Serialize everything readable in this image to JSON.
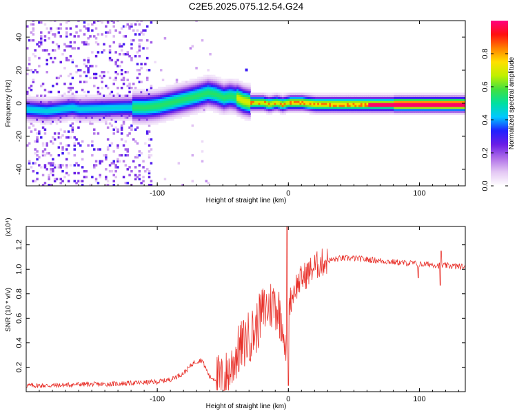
{
  "title": "C2E5.2025.075.12.54.G24",
  "chart_data": [
    {
      "type": "heatmap",
      "xlabel": "Height of straight line (km)",
      "ylabel": "Frequency (Hz)",
      "xlim": [
        -200,
        135
      ],
      "ylim": [
        -50,
        50
      ],
      "x_ticks": [
        -100,
        0,
        100
      ],
      "y_ticks": [
        -40,
        -20,
        0,
        20,
        40
      ],
      "ridge": {
        "x": [
          -200,
          -185,
          -175,
          -165,
          -160,
          -125,
          -110,
          -100,
          -90,
          -80,
          -70,
          -62,
          -56,
          -50,
          -45,
          -40,
          -35,
          -30,
          -25,
          -20,
          -15,
          -10,
          -5,
          0,
          10,
          20,
          40,
          60,
          80,
          100,
          120,
          135
        ],
        "y": [
          -4,
          -5,
          -4,
          -3,
          -4,
          -3,
          -3,
          -2,
          0,
          2,
          4,
          6,
          5,
          3,
          4,
          3,
          1,
          0,
          0,
          0,
          -1,
          0,
          -1,
          0,
          0,
          -1,
          -1,
          -1,
          -1,
          -1,
          -1,
          -1
        ]
      },
      "colorbar": {
        "label": "Normalized spectral amplitude",
        "range": [
          0,
          1
        ],
        "ticks": [
          "0.0",
          "0.2",
          "0.4",
          "0.6",
          "0.8"
        ],
        "tick_values": [
          0.0,
          0.2,
          0.4,
          0.6,
          0.8
        ],
        "stops": [
          "#ffffff",
          "#e4c8f4",
          "#b070e8",
          "#6a1ee6",
          "#2020ff",
          "#00c8ff",
          "#00e0a0",
          "#40e040",
          "#c0f000",
          "#ffe000",
          "#ff8000",
          "#ff1010",
          "#ff0080"
        ]
      }
    },
    {
      "type": "line",
      "xlabel": "Height of straight line (km)",
      "ylabel": "SNR (10 * v/v)",
      "y_scale_label": "(x10⁴)",
      "xlim": [
        -200,
        135
      ],
      "ylim": [
        0,
        1.35
      ],
      "x_ticks": [
        -100,
        0,
        100
      ],
      "y_ticks": [
        0.2,
        0.4,
        0.6,
        0.8,
        1.0,
        1.2
      ],
      "y_tick_labels": [
        "0.2",
        "0.4",
        "0.6",
        "0.8",
        "1.0",
        "1.2"
      ],
      "color": "#e8312a",
      "series": [
        {
          "name": "SNR",
          "x": [
            -200,
            -180,
            -160,
            -140,
            -120,
            -100,
            -90,
            -80,
            -72,
            -66,
            -60,
            -50,
            -44,
            -40,
            -35,
            -30,
            -25,
            -20,
            -15,
            -10,
            -5,
            -2,
            0,
            5,
            10,
            15,
            20,
            25,
            30,
            35,
            40,
            50,
            60,
            70,
            80,
            90,
            95,
            100,
            110,
            115,
            120,
            135
          ],
          "values": [
            0.05,
            0.05,
            0.06,
            0.06,
            0.07,
            0.08,
            0.1,
            0.15,
            0.24,
            0.26,
            0.12,
            0.08,
            0.18,
            0.3,
            0.38,
            0.45,
            0.5,
            0.65,
            0.7,
            0.72,
            0.6,
            0.3,
            0.7,
            0.85,
            0.92,
            0.97,
            1.02,
            1.05,
            1.07,
            1.08,
            1.09,
            1.09,
            1.08,
            1.07,
            1.06,
            1.05,
            1.05,
            1.04,
            1.04,
            1.03,
            1.03,
            1.02
          ]
        }
      ],
      "spikes": [
        {
          "x": -1,
          "value": 1.35
        },
        {
          "x": 0,
          "value": 0.05
        },
        {
          "x": 99,
          "value": 0.93
        },
        {
          "x": 116,
          "value": 0.87
        },
        {
          "x": 116.5,
          "value": 1.15
        }
      ]
    }
  ]
}
